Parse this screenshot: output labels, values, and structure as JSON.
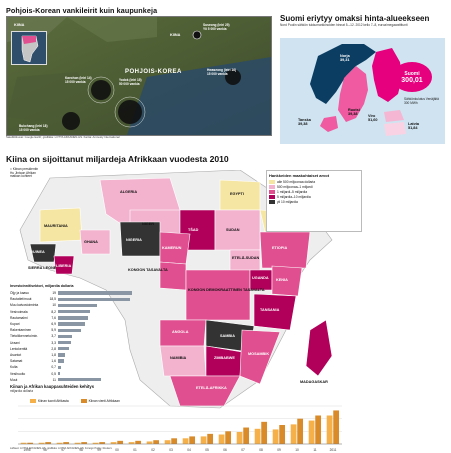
{
  "korea": {
    "title": "Pohjois-Korean vankileirit kuin kaupunkeja",
    "country_labels": [
      "KIINA",
      "POHJOIS-KOREA",
      "KIINA"
    ],
    "camps": [
      {
        "label": "Suseong (leiri 25)",
        "prisoners": "Yli 5 000 vankia"
      },
      {
        "label": "Kaechon (leiri 14)",
        "prisoners": "15 000 vankia"
      },
      {
        "label": "Yodok (leiri 15)",
        "prisoners": "50 000 vankia"
      },
      {
        "label": "Hwaseong (leiri 16)",
        "prisoners": "15 000 vankia"
      },
      {
        "label": "Bukchang (leiri 18)",
        "prisoners": "15 000 vankia"
      }
    ],
    "source": "Satelliittikuvat: Google Earth; grafiikka: LOTTA AKKANEN-HS. Kartta: Amnesty International"
  },
  "power": {
    "title": "Suomi eriytyy omaksi hinta-alueekseen",
    "subtitle": "Nord Poolin sähkön tukkumarkkinoiden hinnat 5.–12. 2012 kello 7–8, euroa/megawattitunti",
    "regions": [
      {
        "name": "Norja",
        "value": "39,31"
      },
      {
        "name": "Tanska",
        "value": "39,38"
      },
      {
        "name": "Ruotsi",
        "value": "39,38"
      },
      {
        "name": "Viro",
        "value": "51,60"
      },
      {
        "name": "Latvia",
        "value": "51,84"
      },
      {
        "name": "Suomi",
        "value": "300,01"
      }
    ],
    "note": "Sähkönkulutus Venäjältä 300 MWh"
  },
  "africa": {
    "title": "Kiina on sijoittanut miljardeja Afrikkaan vuodesta 2010",
    "top_legend": [
      "= Kiinan presidentin",
      "Hu Jintaon Afrikan",
      "matkan kohteet"
    ],
    "invest_legend_title": "Hankkeiden maakohtaiset arvot",
    "invest_legend": [
      {
        "label": "alle 500 miljoonaa dollaria",
        "color": "#f6e6a3"
      },
      {
        "label": "500 miljoonaa–1 miljardi",
        "color": "#f3b3cf"
      },
      {
        "label": "1 miljardi–5 miljardia",
        "color": "#e04f8f"
      },
      {
        "label": "5 miljardia–10 miljardia",
        "color": "#b0005a"
      },
      {
        "label": "yli 10 miljardia",
        "color": "#333333"
      }
    ],
    "country_labels": [
      "ALGERIA",
      "EGYPTI",
      "MAURITANIA",
      "NIGER",
      "TŠAD",
      "SUDAN",
      "ERITREA",
      "GHANA",
      "NIGERIA",
      "KAMERUN",
      "ETELÄ-SUDAN",
      "ETIOPIA",
      "GUINEA",
      "SIERRA LEONE",
      "LIBERIA",
      "KONGON TASAVALTA",
      "KONGON DEMOKRAATTINEN TASAVALTA",
      "UGANDA",
      "KENIA",
      "TANSANIA",
      "ANGOLA",
      "SAMBIA",
      "NAMIBIA",
      "ZIMBABWE",
      "MOSAMBIK",
      "ETELÄ-AFRIKKA",
      "MADAGASKAR"
    ],
    "scale": "500 km",
    "bar_title": "Investoinnit/sektori, miljardia dollaria",
    "bar_sectors": [
      {
        "name": "Öljy ja kaasu",
        "value": 19.0
      },
      {
        "name": "Rautatiet/muut",
        "value": 18.5
      },
      {
        "name": "Muu kaivostoiminta",
        "value": 10.0
      },
      {
        "name": "Vesivoimala",
        "value": 8.2
      },
      {
        "name": "Rautamalmi",
        "value": 7.6
      },
      {
        "name": "Kupari",
        "value": 6.9
      },
      {
        "name": "Rakentaminen",
        "value": 5.9
      },
      {
        "name": "Tietoliikennetoimin.",
        "value": 3.7
      },
      {
        "name": "Uraani",
        "value": 3.3
      },
      {
        "name": "Lentokenttä",
        "value": 2.8
      },
      {
        "name": "Asuntot",
        "value": 1.8
      },
      {
        "name": "Satamat",
        "value": 1.6
      },
      {
        "name": "Kulta",
        "value": 0.7
      },
      {
        "name": "Vesihuolto",
        "value": 0.5
      },
      {
        "name": "Muut",
        "value": 11.0
      }
    ],
    "trade_title": "Kiinan ja Afrikan kauppasuhteiden kehitys",
    "trade_units": "miljardia dollaria",
    "trade_legend": [
      {
        "label": "Kiinan tuonti Afrikasta",
        "color": "#f6b04a"
      },
      {
        "label": "Kiinan vienti Afrikkaan",
        "color": "#d98b2a"
      }
    ],
    "trade_years": [
      "1995",
      "96",
      "97",
      "98",
      "99",
      "00",
      "01",
      "02",
      "03",
      "04",
      "05",
      "06",
      "07",
      "08",
      "09",
      "10",
      "11",
      "2011"
    ],
    "trade_import": [
      2,
      2,
      2,
      2,
      2,
      3,
      3,
      4,
      6,
      9,
      12,
      15,
      19,
      24,
      23,
      31,
      37,
      45
    ],
    "trade_export": [
      2,
      3,
      3,
      3,
      3,
      5,
      5,
      6,
      9,
      12,
      16,
      20,
      26,
      35,
      30,
      40,
      45,
      53
    ],
    "source": "Lähteet: LOTTA AKKANEN-HS. grafiikka: LOTTA AKKANEN-HS; Foreign Policy, Reuters"
  }
}
